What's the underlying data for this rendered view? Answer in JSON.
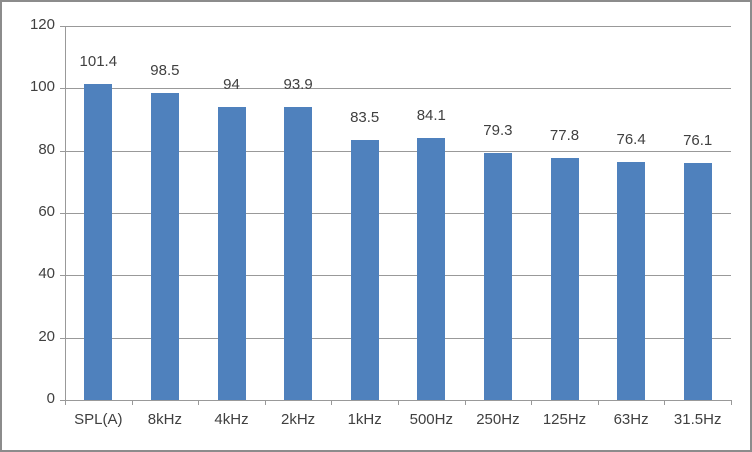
{
  "chart_data": {
    "type": "bar",
    "title": "",
    "xlabel": "",
    "ylabel": "",
    "categories": [
      "SPL(A)",
      "8kHz",
      "4kHz",
      "2kHz",
      "1kHz",
      "500Hz",
      "250Hz",
      "125Hz",
      "63Hz",
      "31.5Hz"
    ],
    "values": [
      101.4,
      98.5,
      94,
      93.9,
      83.5,
      84.1,
      79.3,
      77.8,
      76.4,
      76.1
    ],
    "value_labels": [
      "101.4",
      "98.5",
      "94",
      "93.9",
      "83.5",
      "84.1",
      "79.3",
      "77.8",
      "76.4",
      "76.1"
    ],
    "ylim": [
      0,
      120
    ],
    "yticks": [
      0,
      20,
      40,
      60,
      80,
      100,
      120
    ],
    "ytick_labels": [
      "0",
      "20",
      "40",
      "60",
      "80",
      "100",
      "120"
    ],
    "grid": true,
    "legend": "none",
    "colors": {
      "bar": "#4f81bd",
      "gridline": "#999999",
      "axis": "#999999",
      "text": "#404040",
      "frame": "#8c8c8c",
      "background": "#ffffff"
    }
  }
}
